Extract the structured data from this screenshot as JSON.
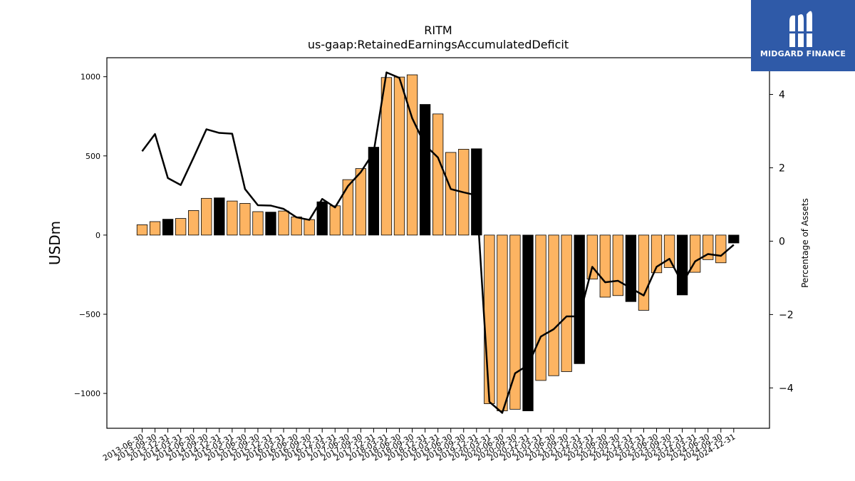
{
  "logo": {
    "text": "MIDGARD FINANCE"
  },
  "colors": {
    "bar_regular": "#fdb462",
    "bar_annual": "#000000",
    "line": "#000000",
    "logo_bg": "#2f5aa8"
  },
  "chart_data": {
    "type": "bar",
    "title": "RITM",
    "subtitle": "us-gaap:RetainedEarningsAccumulatedDeficit",
    "ylabel": "USDm",
    "y2label": "Percentage of Assets",
    "ylim": [
      -1220,
      1120
    ],
    "y2lim": [
      -5.1,
      5.0
    ],
    "yticks": [
      -1000,
      -500,
      0,
      500,
      1000
    ],
    "y2ticks": [
      -4,
      -2,
      0,
      2,
      4
    ],
    "ytick_labels": [
      "−1000",
      "−500",
      "0",
      "500",
      "1000"
    ],
    "y2tick_labels": [
      "−4",
      "−2",
      "0",
      "2",
      "4"
    ],
    "categories": [
      "2013-06-30",
      "2013-09-30",
      "2013-12-31",
      "2014-03-31",
      "2014-06-30",
      "2014-09-30",
      "2014-12-31",
      "2015-03-31",
      "2015-06-30",
      "2015-09-30",
      "2015-12-31",
      "2016-03-31",
      "2016-06-30",
      "2016-09-30",
      "2016-12-31",
      "2017-03-31",
      "2017-06-30",
      "2017-09-30",
      "2017-12-31",
      "2018-03-31",
      "2018-06-30",
      "2018-09-30",
      "2018-12-31",
      "2019-03-31",
      "2019-06-30",
      "2019-09-30",
      "2019-12-31",
      "2020-03-31",
      "2020-06-30",
      "2020-09-30",
      "2020-12-31",
      "2021-03-31",
      "2021-06-30",
      "2021-09-30",
      "2021-12-31",
      "2022-03-31",
      "2022-06-30",
      "2022-09-30",
      "2022-12-31",
      "2023-03-31",
      "2023-06-30",
      "2023-09-30",
      "2023-12-31",
      "2024-03-31",
      "2024-06-30",
      "2024-09-30",
      "2024-12-31"
    ],
    "annual": [
      false,
      false,
      true,
      false,
      false,
      false,
      true,
      false,
      false,
      false,
      true,
      false,
      false,
      false,
      true,
      false,
      false,
      false,
      true,
      false,
      false,
      false,
      true,
      false,
      false,
      false,
      true,
      false,
      false,
      false,
      true,
      false,
      false,
      false,
      true,
      false,
      false,
      false,
      true,
      false,
      false,
      false,
      true,
      false,
      false,
      false,
      true
    ],
    "series": [
      {
        "type": "bar",
        "values": [
          65,
          85,
          100,
          105,
          155,
          232,
          235,
          215,
          200,
          148,
          145,
          152,
          115,
          98,
          210,
          185,
          350,
          420,
          555,
          995,
          998,
          1012,
          825,
          765,
          522,
          542,
          545,
          -1065,
          -1110,
          -1100,
          -1110,
          -918,
          -888,
          -862,
          -812,
          -278,
          -392,
          -382,
          -420,
          -475,
          -238,
          -205,
          -378,
          -235,
          -155,
          -175,
          -50
        ]
      },
      {
        "type": "line",
        "axis": "y2",
        "values": [
          2.45,
          2.92,
          1.72,
          1.53,
          2.28,
          3.05,
          2.95,
          2.93,
          1.42,
          0.98,
          0.97,
          0.88,
          0.65,
          0.58,
          1.15,
          0.92,
          1.5,
          1.88,
          2.42,
          4.6,
          4.45,
          3.35,
          2.62,
          2.28,
          1.42,
          1.33,
          1.25,
          -4.38,
          -4.68,
          -3.6,
          -3.38,
          -2.6,
          -2.4,
          -2.05,
          -2.05,
          -0.7,
          -1.12,
          -1.08,
          -1.28,
          -1.48,
          -0.7,
          -0.48,
          -1.15,
          -0.55,
          -0.35,
          -0.4,
          -0.1
        ]
      }
    ]
  }
}
